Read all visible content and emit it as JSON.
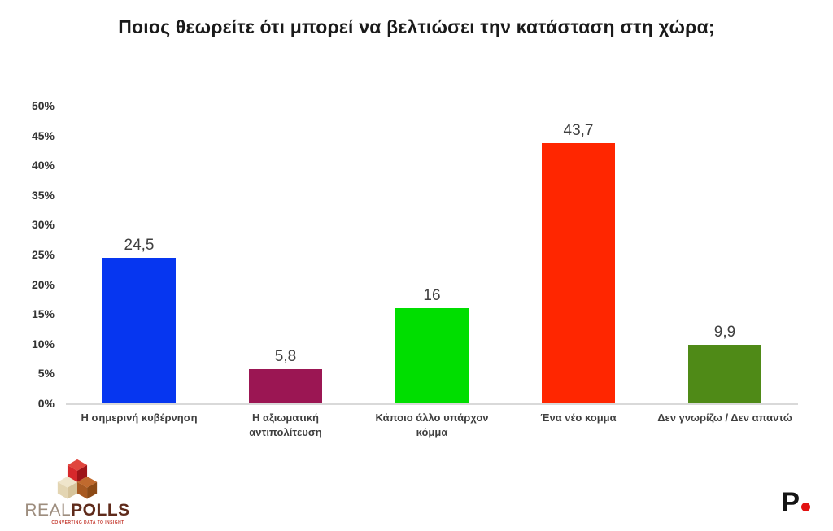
{
  "title": "Ποιος θεωρείτε ότι μπορεί να βελτιώσει την κατάσταση στη χώρα;",
  "chart_data": {
    "type": "bar",
    "title": "Ποιος θεωρείτε ότι μπορεί να βελτιώσει την κατάσταση στη χώρα;",
    "categories": [
      "Η σημερινή κυβέρνηση",
      "Η αξιωματική αντιπολίτευση",
      "Κάποιο άλλο υπάρχον\nκόμμα",
      "Ένα νέο κομμα",
      "Δεν γνωρίζω / Δεν απαντώ"
    ],
    "values": [
      24.5,
      5.8,
      16,
      43.7,
      9.9
    ],
    "value_labels": [
      "24,5",
      "5,8",
      "16",
      "43,7",
      "9,9"
    ],
    "bar_colors": [
      "#0636f0",
      "#9b1653",
      "#00de00",
      "#ff2600",
      "#4f8a17"
    ],
    "xlabel": "",
    "ylabel": "",
    "ylim": [
      0,
      50
    ],
    "ytick_step": 5,
    "ytick_suffix": "%",
    "grid": false,
    "legend": false,
    "baseline_color": "#d9d9d9"
  },
  "footer": {
    "realpolls": {
      "real": "REAL",
      "polls": "POLLS",
      "tagline": "CONVERTING DATA TO INSIGHT"
    },
    "p_logo": {
      "letter": "P"
    }
  }
}
